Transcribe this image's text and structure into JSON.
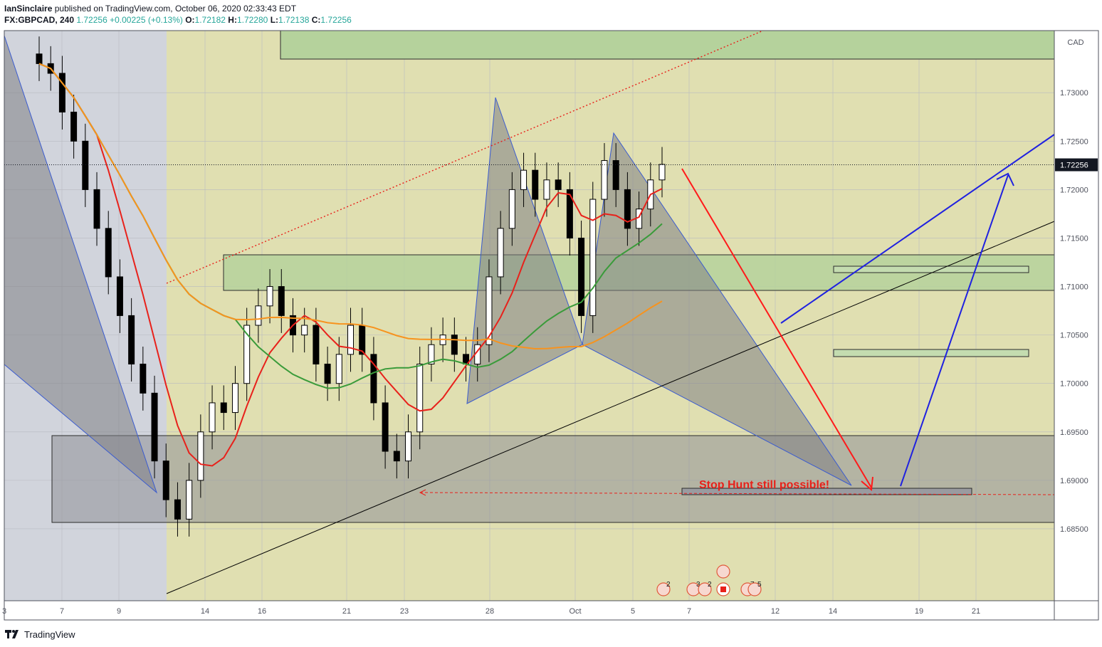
{
  "header": {
    "publisher": "IanSinclaire",
    "published_text": "published on TradingView.com, October 06, 2020 02:33:43 EDT",
    "symbol": "FX:GBPCAD, 240",
    "last": "1.72256",
    "change": "+0.00225 (+0.13%)",
    "o_label": "O:",
    "o_val": "1.72182",
    "h_label": "H:",
    "h_val": "1.72280",
    "l_label": "L:",
    "l_val": "1.72138",
    "c_label": "C:",
    "c_val": "1.72256"
  },
  "footer": {
    "brand": "TradingView"
  },
  "colors": {
    "bg_outer": "#d1d4dc",
    "yellow_zone": "#e0dfb1",
    "green_zone": "#b5d29c",
    "grey_zone": "#8f9097",
    "pattern": "#7f8085",
    "ma_red": "#e8211b",
    "ma_green": "#3a9b3a",
    "ma_orange": "#f7931e",
    "arrow_red": "#ff1a1a",
    "arrow_blue": "#1f21e0",
    "candle": "#000000"
  },
  "chart_data": {
    "type": "candlestick",
    "symbol": "FX:GBPCAD",
    "timeframe": "240",
    "currency": "CAD",
    "ylim": [
      1.681,
      1.7365
    ],
    "y_ticks": [
      "1.73000",
      "1.72500",
      "1.72000",
      "1.71500",
      "1.71000",
      "1.70500",
      "1.70000",
      "1.69500",
      "1.69000",
      "1.68500"
    ],
    "x_ticks": [
      "3",
      "7",
      "9",
      "14",
      "16",
      "21",
      "23",
      "28",
      "Oct",
      "5",
      "7",
      "12",
      "14",
      "19",
      "21"
    ],
    "last_price_label": "1.72256",
    "annotation": "Stop Hunt still possible!",
    "event_badges": [
      "2",
      "3",
      "2",
      "7",
      "5"
    ],
    "series": [
      {
        "kind": "close_price",
        "values": [
          1.733,
          1.732,
          1.728,
          1.725,
          1.72,
          1.716,
          1.711,
          1.707,
          1.702,
          1.699,
          1.692,
          1.688,
          1.686,
          1.69,
          1.695,
          1.698,
          1.697,
          1.7,
          1.706,
          1.708,
          1.71,
          1.707,
          1.705,
          1.706,
          1.702,
          1.7,
          1.703,
          1.706,
          1.703,
          1.698,
          1.693,
          1.692,
          1.695,
          1.702,
          1.704,
          1.705,
          1.703,
          1.702,
          1.704,
          1.711,
          1.716,
          1.72,
          1.722,
          1.719,
          1.721,
          1.72,
          1.715,
          1.707,
          1.719,
          1.723,
          1.72,
          1.716,
          1.718,
          1.721,
          1.7226
        ]
      }
    ]
  }
}
